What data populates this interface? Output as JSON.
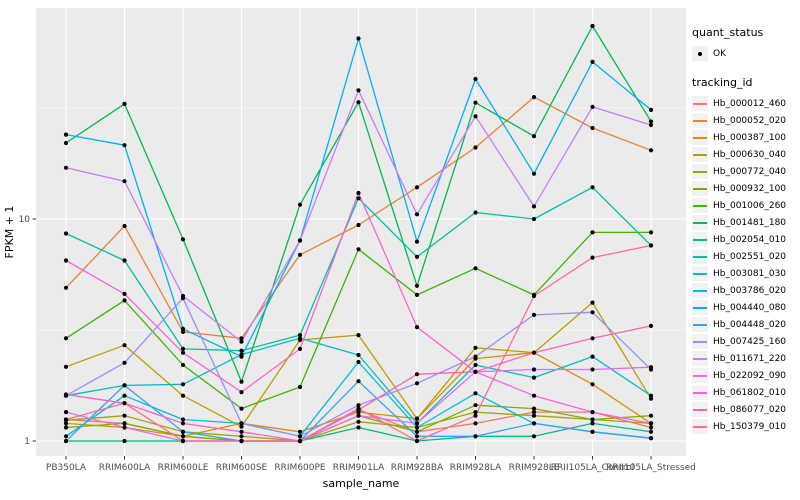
{
  "figure": {
    "legend": {
      "quant_status_title": "quant_status",
      "ok_label": "OK",
      "tracking_id_title": "tracking_id"
    },
    "panel_bg": "#EBEBEB",
    "grid_color": "#FFFFFF",
    "axis_text_color": "#4D4D4D",
    "key_box_bg": "#F2F2F2"
  },
  "chart_data": {
    "type": "line",
    "title": "",
    "xlabel": "sample_name",
    "ylabel": "FPKM + 1",
    "yscale": "log10",
    "ylim": [
      0.87,
      88
    ],
    "grid": true,
    "legend_position": "right",
    "point_color": "#000000",
    "y_ticks": [
      {
        "label": "1",
        "value": 1
      },
      {
        "label": "10",
        "value": 10
      }
    ],
    "y_minor_ticks": [
      3.162,
      31.62
    ],
    "categories": [
      "PB350LA",
      "RRIM600LA",
      "RRIM600LE",
      "RRIM600SE",
      "RRIM600PE",
      "RRIM901LA",
      "RRIM928BA",
      "RRIM928LA",
      "RRIM928LE",
      "RRII105LA_Control",
      "RRII105LA_Stressed"
    ],
    "series": [
      {
        "name": "Hb_000012_460",
        "color": "#F8766D",
        "values": [
          1.25,
          1.2,
          1.05,
          1.0,
          1.0,
          1.38,
          1.1,
          1.2,
          1.35,
          1.35,
          1.15
        ]
      },
      {
        "name": "Hb_000052_020",
        "color": "#EA8331",
        "values": [
          4.9,
          9.3,
          3.1,
          2.9,
          6.9,
          9.4,
          13.9,
          21.0,
          35.4,
          25.7,
          20.4
        ]
      },
      {
        "name": "Hb_000387_100",
        "color": "#D89000",
        "values": [
          1.2,
          1.15,
          1.05,
          1.2,
          1.1,
          1.35,
          1.26,
          2.35,
          2.5,
          1.8,
          1.2
        ]
      },
      {
        "name": "Hb_000630_040",
        "color": "#C09B00",
        "values": [
          2.16,
          2.7,
          1.6,
          1.16,
          2.85,
          3.0,
          1.26,
          2.63,
          2.5,
          4.2,
          1.55
        ]
      },
      {
        "name": "Hb_000772_040",
        "color": "#A3A500",
        "values": [
          1.24,
          1.3,
          1.1,
          1.05,
          1.0,
          1.22,
          1.15,
          1.35,
          1.3,
          1.25,
          1.2
        ]
      },
      {
        "name": "Hb_000932_100",
        "color": "#7CAE00",
        "values": [
          1.15,
          1.2,
          1.05,
          1.0,
          1.0,
          1.3,
          1.1,
          1.45,
          1.4,
          1.25,
          1.3
        ]
      },
      {
        "name": "Hb_001006_260",
        "color": "#39B600",
        "values": [
          2.9,
          4.3,
          2.2,
          1.4,
          1.75,
          7.3,
          4.55,
          6.0,
          4.55,
          8.7,
          8.7
        ]
      },
      {
        "name": "Hb_001481_180",
        "color": "#00BB4E",
        "values": [
          22.0,
          33.0,
          8.1,
          1.85,
          11.6,
          33.6,
          5.0,
          33.4,
          23.6,
          74.0,
          27.5
        ]
      },
      {
        "name": "Hb_002054_010",
        "color": "#00BF7D",
        "values": [
          1.0,
          1.0,
          1.0,
          1.0,
          1.0,
          1.15,
          1.0,
          1.05,
          1.05,
          1.2,
          1.1
        ]
      },
      {
        "name": "Hb_002551_020",
        "color": "#00C1A3",
        "values": [
          8.6,
          6.5,
          2.6,
          2.55,
          3.0,
          12.4,
          6.75,
          10.7,
          10.0,
          13.9,
          7.6
        ]
      },
      {
        "name": "Hb_003081_030",
        "color": "#00BFC4",
        "values": [
          1.6,
          1.78,
          1.8,
          2.45,
          2.9,
          2.44,
          1.2,
          2.2,
          1.93,
          2.4,
          1.6
        ]
      },
      {
        "name": "Hb_003786_020",
        "color": "#00BAE0",
        "values": [
          1.05,
          1.6,
          1.25,
          1.2,
          1.05,
          2.27,
          1.15,
          1.64,
          1.2,
          1.1,
          1.03
        ]
      },
      {
        "name": "Hb_004440_080",
        "color": "#00B0F6",
        "values": [
          24.0,
          21.5,
          3.2,
          2.4,
          8.0,
          65.0,
          7.9,
          42.7,
          16.0,
          51.0,
          31.0
        ]
      },
      {
        "name": "Hb_004448_020",
        "color": "#35A2FF",
        "values": [
          1.0,
          1.78,
          1.1,
          1.0,
          1.0,
          1.86,
          1.05,
          1.05,
          1.2,
          1.1,
          1.03
        ]
      },
      {
        "name": "Hb_007425_160",
        "color": "#9590FF",
        "values": [
          1.6,
          2.25,
          4.4,
          1.2,
          1.05,
          1.45,
          1.82,
          2.4,
          3.7,
          3.8,
          2.1
        ]
      },
      {
        "name": "Hb_011671_220",
        "color": "#C77CFF",
        "values": [
          17.0,
          14.8,
          4.5,
          2.8,
          8.0,
          38.0,
          10.5,
          29.0,
          11.4,
          32.0,
          26.5
        ]
      },
      {
        "name": "Hb_022092_090",
        "color": "#E76BF3",
        "values": [
          1.35,
          1.15,
          1.0,
          1.0,
          1.0,
          1.3,
          1.2,
          2.05,
          2.1,
          2.1,
          2.15
        ]
      },
      {
        "name": "Hb_061802_010",
        "color": "#FA62DB",
        "values": [
          6.5,
          4.6,
          2.5,
          1.66,
          2.6,
          13.1,
          3.26,
          2.05,
          1.6,
          1.35,
          1.2
        ]
      },
      {
        "name": "Hb_086077_020",
        "color": "#FF62BC",
        "values": [
          1.62,
          1.48,
          1.2,
          1.1,
          1.0,
          1.38,
          2.0,
          2.05,
          2.5,
          2.9,
          3.3
        ]
      },
      {
        "name": "Hb_150379_010",
        "color": "#FF6A98",
        "values": [
          1.25,
          1.48,
          1.0,
          1.0,
          1.0,
          1.4,
          1.0,
          1.3,
          4.5,
          6.7,
          7.6
        ]
      }
    ]
  }
}
